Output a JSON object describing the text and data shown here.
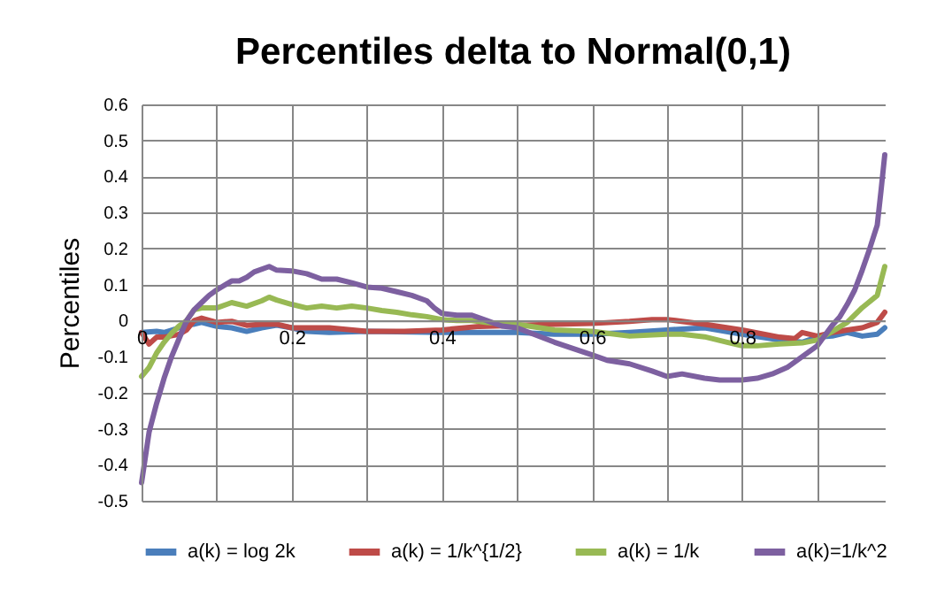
{
  "chart_data": {
    "type": "line",
    "title": "Percentiles delta to Normal(0,1)",
    "ylabel": "Percentiles",
    "xlim": [
      0,
      0.99
    ],
    "xticks": [
      0,
      {
        "value": 0.1,
        "label": null
      },
      0.2,
      {
        "value": 0.3,
        "label": null
      },
      0.4,
      {
        "value": 0.5,
        "label": null
      },
      0.6,
      {
        "value": 0.7,
        "label": null
      },
      0.8,
      {
        "value": 0.9,
        "label": null
      }
    ],
    "ylim": [
      -0.5,
      0.6
    ],
    "yticks": [
      -0.5,
      -0.4,
      -0.3,
      -0.2,
      -0.1,
      0,
      0.1,
      0.2,
      0.3,
      0.4,
      0.5,
      0.6
    ],
    "grid": true,
    "legend": "bottom",
    "marker": "none",
    "line_style": "solid",
    "series": [
      {
        "name": "a(k) = log 2k",
        "color": "#4a7ebb",
        "x": [
          0,
          0.02,
          0.03,
          0.05,
          0.06,
          0.07,
          0.08,
          0.1,
          0.12,
          0.14,
          0.16,
          0.18,
          0.2,
          0.22,
          0.25,
          0.3,
          0.4,
          0.5,
          0.55,
          0.6,
          0.65,
          0.7,
          0.75,
          0.8,
          0.85,
          0.88,
          0.9,
          0.92,
          0.94,
          0.96,
          0.98,
          0.99
        ],
        "values": [
          -0.033,
          -0.03,
          -0.033,
          -0.02,
          -0.01,
          -0.01,
          -0.005,
          -0.016,
          -0.02,
          -0.03,
          -0.02,
          -0.013,
          -0.02,
          -0.03,
          -0.033,
          -0.03,
          -0.033,
          -0.033,
          -0.038,
          -0.038,
          -0.033,
          -0.026,
          -0.02,
          -0.038,
          -0.054,
          -0.06,
          -0.046,
          -0.043,
          -0.033,
          -0.043,
          -0.038,
          -0.02
        ]
      },
      {
        "name": "a(k) = 1/k^{1/2}",
        "color": "#be4b48",
        "x": [
          0,
          0.01,
          0.02,
          0.03,
          0.05,
          0.06,
          0.07,
          0.08,
          0.1,
          0.12,
          0.14,
          0.16,
          0.18,
          0.2,
          0.25,
          0.3,
          0.35,
          0.4,
          0.45,
          0.5,
          0.55,
          0.6,
          0.65,
          0.68,
          0.7,
          0.75,
          0.8,
          0.85,
          0.87,
          0.88,
          0.9,
          0.92,
          0.94,
          0.96,
          0.98,
          0.99
        ],
        "values": [
          -0.033,
          -0.065,
          -0.046,
          -0.046,
          -0.038,
          -0.026,
          0,
          0.007,
          -0.005,
          -0.002,
          -0.013,
          -0.01,
          -0.01,
          -0.02,
          -0.02,
          -0.03,
          -0.03,
          -0.026,
          -0.016,
          -0.013,
          -0.01,
          -0.008,
          -0.002,
          0.003,
          0.003,
          -0.01,
          -0.026,
          -0.046,
          -0.05,
          -0.033,
          -0.043,
          -0.033,
          -0.026,
          -0.02,
          -0.005,
          0.023
        ]
      },
      {
        "name": "a(k) = 1/k",
        "color": "#98b954",
        "x": [
          0,
          0.01,
          0.02,
          0.03,
          0.04,
          0.05,
          0.06,
          0.07,
          0.08,
          0.1,
          0.12,
          0.14,
          0.16,
          0.17,
          0.18,
          0.2,
          0.22,
          0.24,
          0.26,
          0.28,
          0.3,
          0.32,
          0.34,
          0.36,
          0.38,
          0.4,
          0.42,
          0.44,
          0.46,
          0.48,
          0.5,
          0.55,
          0.6,
          0.65,
          0.7,
          0.72,
          0.75,
          0.78,
          0.8,
          0.82,
          0.85,
          0.88,
          0.9,
          0.92,
          0.94,
          0.96,
          0.98,
          0.99
        ],
        "values": [
          -0.155,
          -0.13,
          -0.09,
          -0.06,
          -0.035,
          -0.015,
          0,
          0.03,
          0.035,
          0.035,
          0.05,
          0.04,
          0.055,
          0.065,
          0.057,
          0.045,
          0.035,
          0.04,
          0.035,
          0.04,
          0.035,
          0.028,
          0.023,
          0.016,
          0.011,
          0.003,
          0,
          0,
          -0.005,
          -0.008,
          -0.01,
          -0.026,
          -0.03,
          -0.043,
          -0.038,
          -0.038,
          -0.045,
          -0.06,
          -0.07,
          -0.07,
          -0.065,
          -0.062,
          -0.054,
          -0.03,
          -0.005,
          0.036,
          0.07,
          0.15
        ]
      },
      {
        "name": "a(k)=1/k^2",
        "color": "#7d60a0",
        "x": [
          0,
          0.01,
          0.02,
          0.03,
          0.04,
          0.05,
          0.06,
          0.07,
          0.08,
          0.09,
          0.1,
          0.12,
          0.13,
          0.14,
          0.15,
          0.17,
          0.18,
          0.2,
          0.22,
          0.24,
          0.26,
          0.28,
          0.3,
          0.32,
          0.34,
          0.36,
          0.38,
          0.39,
          0.4,
          0.42,
          0.44,
          0.46,
          0.48,
          0.5,
          0.55,
          0.6,
          0.62,
          0.65,
          0.68,
          0.7,
          0.72,
          0.75,
          0.77,
          0.8,
          0.82,
          0.84,
          0.86,
          0.88,
          0.9,
          0.92,
          0.93,
          0.94,
          0.95,
          0.96,
          0.97,
          0.98,
          0.985,
          0.99
        ],
        "values": [
          -0.45,
          -0.31,
          -0.23,
          -0.16,
          -0.1,
          -0.05,
          0,
          0.03,
          0.05,
          0.07,
          0.085,
          0.11,
          0.11,
          0.12,
          0.135,
          0.15,
          0.14,
          0.138,
          0.13,
          0.115,
          0.115,
          0.105,
          0.093,
          0.09,
          0.08,
          0.07,
          0.055,
          0.035,
          0.02,
          0.015,
          0.015,
          0,
          -0.015,
          -0.02,
          -0.06,
          -0.095,
          -0.11,
          -0.12,
          -0.14,
          -0.155,
          -0.148,
          -0.16,
          -0.165,
          -0.165,
          -0.16,
          -0.148,
          -0.13,
          -0.1,
          -0.07,
          -0.013,
          0.01,
          0.045,
          0.085,
          0.14,
          0.2,
          0.265,
          0.36,
          0.46
        ]
      }
    ]
  }
}
